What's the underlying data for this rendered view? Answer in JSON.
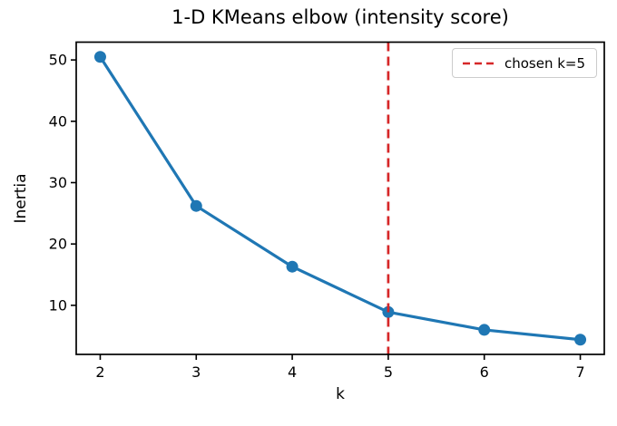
{
  "figure": {
    "background": "#ffffff"
  },
  "chart_data": {
    "type": "line",
    "title": "1-D KMeans elbow (intensity score)",
    "xlabel": "k",
    "ylabel": "Inertia",
    "x": [
      2,
      3,
      4,
      5,
      6,
      7
    ],
    "series": [
      {
        "name": "inertia",
        "values": [
          50.5,
          26.2,
          16.3,
          8.9,
          6.0,
          4.4
        ],
        "color": "#1f77b4"
      }
    ],
    "x_ticks": [
      "2",
      "3",
      "4",
      "5",
      "6",
      "7"
    ],
    "x_tick_values": [
      2,
      3,
      4,
      5,
      6,
      7
    ],
    "y_ticks": [
      "10",
      "20",
      "30",
      "40",
      "50"
    ],
    "y_tick_values": [
      10,
      20,
      30,
      40,
      50
    ],
    "xlim": [
      1.75,
      7.25
    ],
    "ylim": [
      2.0,
      52.9
    ],
    "grid": false,
    "vline": {
      "x": 5,
      "color": "#d62728",
      "style": "dashed",
      "label": "chosen k=5"
    },
    "legend": {
      "position": "upper right",
      "entries": [
        {
          "label": "chosen k=5",
          "color": "#d62728",
          "line_style": "dashed"
        }
      ]
    },
    "axis_color": "#000000",
    "tick_font_size": 16,
    "marker": "o"
  }
}
